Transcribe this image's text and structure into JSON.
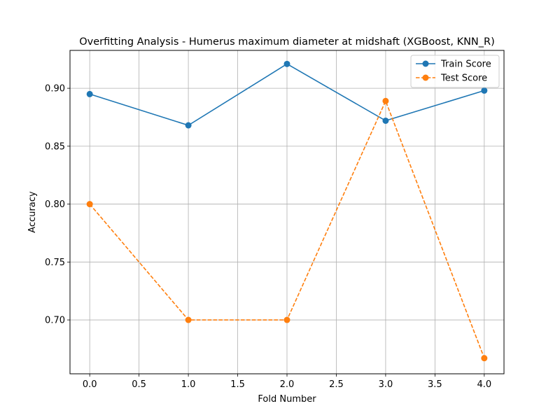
{
  "chart_data": {
    "type": "line",
    "title": "Overfitting Analysis - Humerus maximum diameter at midshaft (XGBoost, KNN_R)",
    "xlabel": "Fold Number",
    "ylabel": "Accuracy",
    "x": [
      0,
      1,
      2,
      3,
      4
    ],
    "xlim": [
      -0.2,
      4.2
    ],
    "ylim": [
      0.6535,
      0.9327
    ],
    "xticks": [
      "0.0",
      "0.5",
      "1.0",
      "1.5",
      "2.0",
      "2.5",
      "3.0",
      "3.5",
      "4.0"
    ],
    "yticks": [
      "0.70",
      "0.75",
      "0.80",
      "0.85",
      "0.90"
    ],
    "grid": true,
    "legend_position": "top-right",
    "series": [
      {
        "name": "Train Score",
        "values": [
          0.895,
          0.868,
          0.921,
          0.872,
          0.898
        ],
        "color": "#1f77b4",
        "line_style": "solid",
        "marker": "circle"
      },
      {
        "name": "Test Score",
        "values": [
          0.8,
          0.7,
          0.7,
          0.889,
          0.667
        ],
        "color": "#ff7f0e",
        "line_style": "dashed",
        "marker": "circle"
      }
    ]
  }
}
